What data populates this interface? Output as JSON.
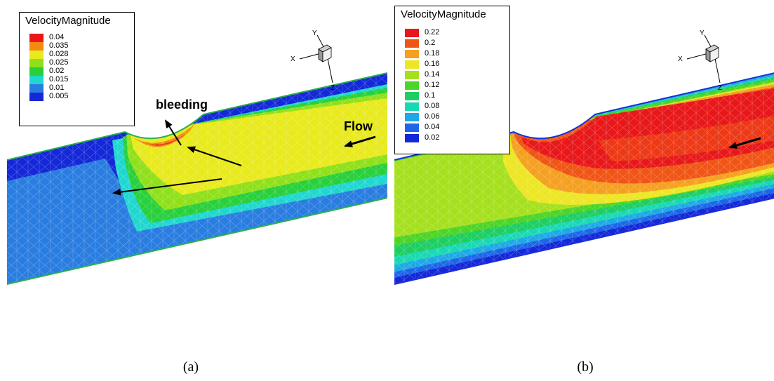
{
  "panel_a": {
    "caption": "(a)",
    "legend": {
      "title": "VelocityMagnitude",
      "items": [
        {
          "label": "0.04",
          "color": "#e8181a"
        },
        {
          "label": "0.035",
          "color": "#f58a12"
        },
        {
          "label": "0.028",
          "color": "#e8ea1e"
        },
        {
          "label": "0.025",
          "color": "#8fe01a"
        },
        {
          "label": "0.02",
          "color": "#28d03c"
        },
        {
          "label": "0.015",
          "color": "#20d7cf"
        },
        {
          "label": "0.01",
          "color": "#2a7de0"
        },
        {
          "label": "0.005",
          "color": "#1428d8"
        }
      ]
    },
    "annotations": {
      "bleeding": "bleeding",
      "flow": "Flow"
    },
    "axes": {
      "x": "X",
      "y": "Y",
      "z": "Z"
    }
  },
  "panel_b": {
    "caption": "(b)",
    "legend": {
      "title": "VelocityMagnitude",
      "items": [
        {
          "label": "0.22",
          "color": "#e8181a"
        },
        {
          "label": "0.2",
          "color": "#f05516"
        },
        {
          "label": "0.18",
          "color": "#f5a020"
        },
        {
          "label": "0.16",
          "color": "#ece624"
        },
        {
          "label": "0.14",
          "color": "#a5e01e"
        },
        {
          "label": "0.12",
          "color": "#4cd428"
        },
        {
          "label": "0.1",
          "color": "#1ece62"
        },
        {
          "label": "0.08",
          "color": "#1ad8b4"
        },
        {
          "label": "0.06",
          "color": "#1ea8e6"
        },
        {
          "label": "0.04",
          "color": "#1e66e8"
        },
        {
          "label": "0.02",
          "color": "#1428d8"
        }
      ]
    },
    "axes": {
      "x": "X",
      "y": "Y",
      "z": "Z"
    }
  }
}
